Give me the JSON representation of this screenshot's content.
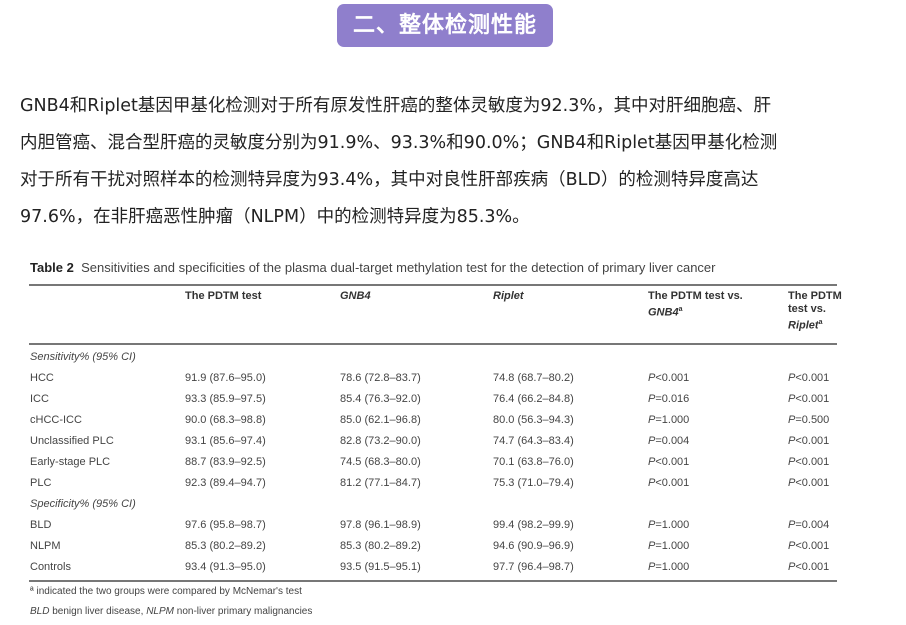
{
  "section_title": "二、整体检测性能",
  "paragraph_lines": [
    "GNB4和Riplet基因甲基化检测对于所有原发性肝癌的整体灵敏度为92.3%，其中对肝细胞癌、肝",
    "内胆管癌、混合型肝癌的灵敏度分别为91.9%、93.3%和90.0%；GNB4和Riplet基因甲基化检测",
    "对于所有干扰对照样本的检测特异度为93.4%，其中对良性肝部疾病（BLD）的检测特异度高达",
    "97.6%，在非肝癌恶性肿瘤（NLPM）中的检测特异度为85.3%。"
  ],
  "table": {
    "label": "Table 2",
    "caption": "Sensitivities and specificities of the plasma dual-target methylation test for the detection of primary liver cancer",
    "headers": [
      "The PDTM test",
      "GNB4",
      "Riplet",
      "The PDTM test vs. GNB4ª",
      "The PDTM test vs. Ripletª"
    ],
    "sections": [
      {
        "label": "Sensitivity% (95% CI)",
        "rows": [
          [
            "HCC",
            "91.9 (87.6–95.0)",
            "78.6 (72.8–83.7)",
            "74.8 (68.7–80.2)",
            "P<0.001",
            "P<0.001"
          ],
          [
            "ICC",
            "93.3 (85.9–97.5)",
            "85.4 (76.3–92.0)",
            "76.4 (66.2–84.8)",
            "P=0.016",
            "P<0.001"
          ],
          [
            "cHCC-ICC",
            "90.0 (68.3–98.8)",
            "85.0 (62.1–96.8)",
            "80.0 (56.3–94.3)",
            "P=1.000",
            "P=0.500"
          ],
          [
            "Unclassified PLC",
            "93.1 (85.6–97.4)",
            "82.8 (73.2–90.0)",
            "74.7 (64.3–83.4)",
            "P=0.004",
            "P<0.001"
          ],
          [
            "Early-stage PLC",
            "88.7 (83.9–92.5)",
            "74.5 (68.3–80.0)",
            "70.1 (63.8–76.0)",
            "P<0.001",
            "P<0.001"
          ],
          [
            "PLC",
            "92.3 (89.4–94.7)",
            "81.2 (77.1–84.7)",
            "75.3 (71.0–79.4)",
            "P<0.001",
            "P<0.001"
          ]
        ]
      },
      {
        "label": "Specificity% (95% CI)",
        "rows": [
          [
            "BLD",
            "97.6 (95.8–98.7)",
            "97.8 (96.1–98.9)",
            "99.4 (98.2–99.9)",
            "P=1.000",
            "P=0.004"
          ],
          [
            "NLPM",
            "85.3 (80.2–89.2)",
            "85.3 (80.2–89.2)",
            "94.6 (90.9–96.9)",
            "P=1.000",
            "P<0.001"
          ],
          [
            "Controls",
            "93.4 (91.3–95.0)",
            "93.5 (91.5–95.1)",
            "97.7 (96.4–98.7)",
            "P=1.000",
            "P<0.001"
          ]
        ]
      }
    ],
    "footnotes": [
      "ª indicated the two groups were compared by McNemar's test",
      "BLD benign liver disease, NLPM non-liver primary malignancies"
    ]
  }
}
